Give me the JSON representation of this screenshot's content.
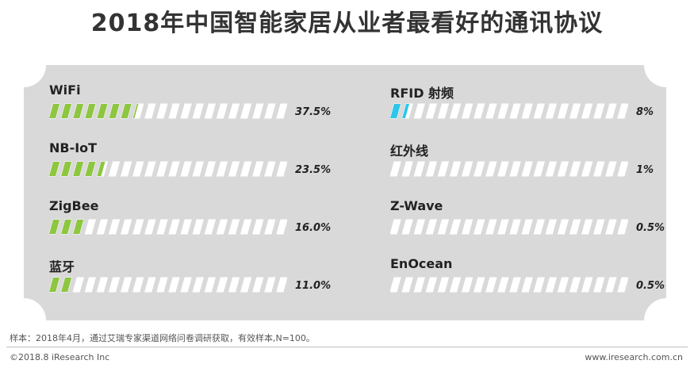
{
  "chart_data": {
    "type": "bar",
    "title": "2018年中国智能家居从业者最看好的通讯协议",
    "xlabel": "",
    "ylabel": "",
    "ylim": [
      0,
      100
    ],
    "unit": "%",
    "categories": [
      "WiFi",
      "NB-IoT",
      "ZigBee",
      "蓝牙",
      "RFID 射频",
      "红外线",
      "Z-Wave",
      "EnOcean"
    ],
    "values": [
      37.5,
      23.5,
      16.0,
      11.0,
      8,
      1,
      0.5,
      0.5
    ],
    "value_labels": [
      "37.5%",
      "23.5%",
      "16.0%",
      "11.0%",
      "8%",
      "1%",
      "0.5%",
      "0.5%"
    ],
    "colors": [
      "#8dc63f",
      "#8dc63f",
      "#8dc63f",
      "#8dc63f",
      "#2dc6e8",
      "#2dc6e8",
      "#2dc6e8",
      "#2dc6e8"
    ],
    "segments": 20
  },
  "footer": {
    "note": "样本：2018年4月，通过艾瑞专家渠道网络问卷调研获取，有效样本,N=100。",
    "copyright": "©2018.8 iResearch Inc",
    "website": "www.iresearch.com.cn"
  }
}
